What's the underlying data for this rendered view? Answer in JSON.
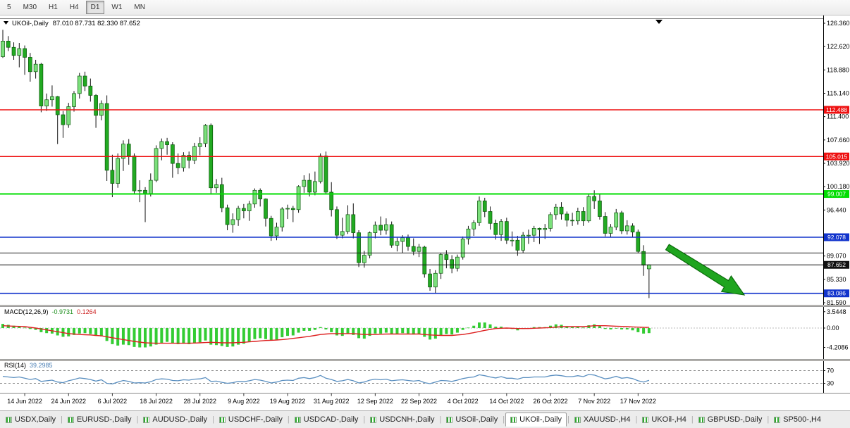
{
  "toolbar": {
    "periods": [
      {
        "label": "5",
        "active": false
      },
      {
        "label": "M30",
        "active": false
      },
      {
        "label": "H1",
        "active": false
      },
      {
        "label": "H4",
        "active": false
      },
      {
        "label": "D1",
        "active": true
      },
      {
        "label": "W1",
        "active": false
      },
      {
        "label": "MN",
        "active": false
      }
    ]
  },
  "window": {
    "symbol_title": "UKOil-,Daily",
    "ohlc_text": "87.010 87.731 82.330 87.652"
  },
  "colors": {
    "bull": "#7BE07B",
    "bear": "#22AA22",
    "wick": "#111111",
    "candle_border": "#0A560A"
  },
  "chart_data": {
    "type": "candlestick",
    "title": "UKOil-,Daily",
    "ohlc_display": {
      "open": "87.010",
      "high": "87.731",
      "low": "82.330",
      "close": "87.652"
    },
    "ylim": [
      81.59,
      126.36
    ],
    "y_axis": {
      "labels": [
        "126.360",
        "122.620",
        "118.880",
        "115.140",
        "111.400",
        "107.660",
        "103.920",
        "100.180",
        "96.440",
        "89.070",
        "85.330",
        "81.590"
      ]
    },
    "x_labels": [
      [
        "14 Jun 2022",
        4
      ],
      [
        "24 Jun 2022",
        12
      ],
      [
        "6 Jul 2022",
        20
      ],
      [
        "18 Jul 2022",
        28
      ],
      [
        "28 Jul 2022",
        36
      ],
      [
        "9 Aug 2022",
        44
      ],
      [
        "19 Aug 2022",
        52
      ],
      [
        "31 Aug 2022",
        60
      ],
      [
        "12 Sep 2022",
        68
      ],
      [
        "22 Sep 2022",
        76
      ],
      [
        "4 Oct 2022",
        84
      ],
      [
        "14 Oct 2022",
        92
      ],
      [
        "26 Oct 2022",
        100
      ],
      [
        "7 Nov 2022",
        108
      ],
      [
        "17 Nov 2022",
        116
      ]
    ],
    "candles": [
      [
        121.0,
        125.3,
        120.8,
        123.5
      ],
      [
        123.5,
        124.3,
        121.9,
        122.5
      ],
      [
        122.5,
        123.3,
        120.5,
        121.2
      ],
      [
        121.2,
        123.2,
        119.3,
        122.3
      ],
      [
        122.3,
        122.8,
        118.1,
        120.9
      ],
      [
        120.9,
        121.6,
        117.0,
        118.6
      ],
      [
        118.6,
        120.5,
        117.5,
        119.8
      ],
      [
        119.8,
        120.0,
        112.1,
        113.1
      ],
      [
        113.1,
        115.1,
        112.3,
        114.1
      ],
      [
        114.1,
        116.4,
        113.0,
        114.6
      ],
      [
        114.6,
        114.7,
        107.0,
        111.7
      ],
      [
        111.7,
        112.3,
        108.0,
        110.1
      ],
      [
        110.1,
        113.6,
        109.6,
        113.0
      ],
      [
        113.0,
        115.5,
        112.2,
        115.1
      ],
      [
        115.1,
        118.4,
        114.3,
        117.9
      ],
      [
        117.9,
        118.6,
        115.5,
        116.3
      ],
      [
        116.3,
        117.5,
        113.8,
        114.8
      ],
      [
        114.8,
        115.0,
        109.6,
        111.6
      ],
      [
        111.6,
        114.0,
        110.8,
        113.5
      ],
      [
        113.5,
        114.8,
        101.1,
        102.8
      ],
      [
        102.8,
        105.3,
        98.5,
        100.7
      ],
      [
        100.7,
        105.5,
        100.0,
        104.7
      ],
      [
        104.7,
        107.6,
        102.7,
        107.0
      ],
      [
        107.0,
        107.8,
        103.7,
        105.1
      ],
      [
        105.1,
        105.5,
        98.9,
        99.5
      ],
      [
        99.5,
        101.2,
        97.7,
        99.6
      ],
      [
        99.6,
        100.1,
        94.5,
        99.1
      ],
      [
        99.1,
        102.3,
        98.6,
        101.2
      ],
      [
        101.2,
        106.8,
        100.9,
        106.3
      ],
      [
        106.3,
        107.9,
        104.4,
        107.4
      ],
      [
        107.4,
        108.0,
        105.3,
        106.9
      ],
      [
        106.9,
        107.3,
        101.6,
        103.9
      ],
      [
        103.9,
        105.5,
        102.2,
        103.2
      ],
      [
        103.2,
        105.7,
        102.6,
        105.2
      ],
      [
        105.2,
        105.8,
        103.1,
        104.4
      ],
      [
        104.4,
        107.2,
        103.8,
        106.6
      ],
      [
        106.6,
        108.1,
        105.2,
        107.1
      ],
      [
        107.1,
        110.2,
        106.5,
        110.0
      ],
      [
        110.0,
        110.3,
        99.1,
        100.0
      ],
      [
        100.0,
        101.4,
        99.2,
        100.5
      ],
      [
        100.5,
        101.6,
        96.1,
        96.8
      ],
      [
        96.8,
        97.3,
        93.2,
        94.1
      ],
      [
        94.1,
        95.9,
        92.8,
        94.9
      ],
      [
        94.9,
        97.1,
        93.9,
        96.7
      ],
      [
        96.7,
        97.4,
        95.1,
        96.3
      ],
      [
        96.3,
        97.9,
        94.7,
        97.4
      ],
      [
        97.4,
        99.9,
        96.8,
        99.6
      ],
      [
        99.6,
        99.9,
        97.0,
        98.2
      ],
      [
        98.2,
        98.3,
        93.8,
        95.1
      ],
      [
        95.1,
        95.5,
        91.5,
        92.3
      ],
      [
        92.3,
        94.4,
        91.6,
        93.7
      ],
      [
        93.7,
        96.9,
        93.0,
        96.6
      ],
      [
        96.6,
        97.3,
        95.0,
        96.7
      ],
      [
        96.7,
        97.1,
        94.5,
        96.5
      ],
      [
        96.5,
        100.4,
        96.0,
        100.2
      ],
      [
        100.2,
        102.0,
        99.2,
        101.2
      ],
      [
        101.2,
        102.3,
        98.6,
        99.3
      ],
      [
        99.3,
        102.6,
        98.8,
        101.0
      ],
      [
        101.0,
        105.5,
        100.7,
        105.1
      ],
      [
        105.1,
        105.8,
        98.9,
        99.3
      ],
      [
        99.3,
        100.9,
        95.4,
        96.5
      ],
      [
        96.5,
        97.0,
        91.8,
        92.4
      ],
      [
        92.4,
        95.2,
        91.9,
        93.0
      ],
      [
        93.0,
        97.2,
        92.6,
        95.7
      ],
      [
        95.7,
        97.5,
        91.9,
        92.8
      ],
      [
        92.8,
        93.2,
        87.3,
        88.0
      ],
      [
        88.0,
        89.9,
        87.2,
        89.2
      ],
      [
        89.2,
        93.0,
        88.7,
        92.8
      ],
      [
        92.8,
        94.6,
        91.9,
        94.0
      ],
      [
        94.0,
        95.4,
        92.4,
        93.2
      ],
      [
        93.2,
        95.1,
        92.5,
        94.1
      ],
      [
        94.1,
        94.6,
        90.4,
        90.8
      ],
      [
        90.8,
        92.0,
        89.8,
        91.4
      ],
      [
        91.4,
        92.4,
        89.6,
        92.0
      ],
      [
        92.0,
        92.5,
        89.9,
        90.6
      ],
      [
        90.6,
        91.9,
        89.2,
        89.8
      ],
      [
        89.8,
        91.0,
        88.9,
        90.5
      ],
      [
        90.5,
        90.7,
        85.6,
        86.2
      ],
      [
        86.2,
        87.0,
        83.5,
        84.1
      ],
      [
        84.1,
        86.8,
        83.1,
        86.3
      ],
      [
        86.3,
        89.6,
        85.4,
        89.3
      ],
      [
        89.3,
        90.0,
        87.1,
        88.5
      ],
      [
        88.5,
        89.2,
        86.3,
        87.1
      ],
      [
        87.1,
        89.3,
        86.6,
        88.9
      ],
      [
        88.9,
        92.2,
        88.5,
        91.8
      ],
      [
        91.8,
        93.9,
        90.9,
        93.4
      ],
      [
        93.4,
        94.8,
        92.3,
        94.4
      ],
      [
        94.4,
        98.6,
        93.9,
        97.9
      ],
      [
        97.9,
        98.4,
        95.3,
        96.2
      ],
      [
        96.2,
        97.0,
        93.3,
        94.3
      ],
      [
        94.3,
        94.9,
        91.7,
        92.5
      ],
      [
        92.5,
        95.0,
        91.5,
        94.6
      ],
      [
        94.6,
        95.2,
        91.0,
        91.6
      ],
      [
        91.6,
        93.0,
        90.6,
        91.6
      ],
      [
        91.6,
        92.3,
        89.1,
        90.0
      ],
      [
        90.0,
        92.9,
        89.6,
        92.4
      ],
      [
        92.4,
        93.3,
        91.0,
        92.4
      ],
      [
        92.4,
        93.9,
        91.3,
        93.5
      ],
      [
        93.5,
        93.6,
        91.0,
        93.3
      ],
      [
        93.3,
        94.2,
        91.8,
        93.5
      ],
      [
        93.5,
        96.1,
        93.0,
        95.7
      ],
      [
        95.7,
        97.4,
        94.9,
        96.9
      ],
      [
        96.9,
        97.7,
        94.9,
        95.8
      ],
      [
        95.8,
        96.2,
        93.8,
        94.8
      ],
      [
        94.8,
        96.0,
        93.9,
        94.7
      ],
      [
        94.7,
        96.8,
        94.1,
        96.2
      ],
      [
        96.2,
        96.9,
        93.9,
        94.7
      ],
      [
        94.7,
        98.9,
        94.4,
        98.6
      ],
      [
        98.6,
        99.6,
        96.6,
        97.9
      ],
      [
        97.9,
        99.1,
        94.9,
        95.4
      ],
      [
        95.4,
        96.1,
        92.2,
        92.7
      ],
      [
        92.7,
        94.2,
        92.1,
        93.7
      ],
      [
        93.7,
        96.6,
        93.2,
        96.0
      ],
      [
        96.0,
        96.3,
        92.6,
        93.1
      ],
      [
        93.1,
        94.8,
        92.5,
        93.9
      ],
      [
        93.9,
        94.3,
        92.1,
        92.9
      ],
      [
        92.9,
        93.3,
        89.5,
        89.8
      ],
      [
        89.8,
        90.8,
        85.9,
        87.6
      ],
      [
        87.01,
        87.731,
        82.33,
        87.652
      ]
    ],
    "hlines": [
      {
        "price": 112.488,
        "color": "#EE1111",
        "width": 1.4,
        "badge": "112.488"
      },
      {
        "price": 105.015,
        "color": "#EE1111",
        "width": 1.4,
        "badge": "105.015"
      },
      {
        "price": 99.007,
        "color": "#00DD00",
        "width": 2,
        "badge": "99.007"
      },
      {
        "price": 92.078,
        "color": "#1133CC",
        "width": 1.6,
        "badge": "92.078"
      },
      {
        "price": 89.55,
        "color": "#222222",
        "width": 1,
        "badge": null
      },
      {
        "price": 87.652,
        "color": "#111111",
        "width": 1,
        "badge": "87.652"
      },
      {
        "price": 83.086,
        "color": "#1133CC",
        "width": 1.6,
        "badge": "83.086"
      }
    ],
    "arrow": {
      "color": "#1FA51F",
      "border": "#0B6B0B",
      "from": [
        947,
        329
      ],
      "to": [
        1056,
        397
      ]
    },
    "macd": {
      "label": "MACD(12,26,9)",
      "main_value": "-0.9731",
      "signal_value": "0.1264",
      "hist_color": "#33CC33",
      "signal_color": "#DD2020",
      "axis": [
        [
          "3.5448",
          3.5448
        ],
        [
          "0.00",
          0
        ],
        [
          "-4.2086",
          -4.2086
        ]
      ],
      "hist": [
        0.9,
        0.7,
        0.5,
        0.4,
        0.1,
        -0.2,
        -0.4,
        -0.9,
        -1.1,
        -1.2,
        -1.6,
        -1.9,
        -1.8,
        -1.5,
        -1.2,
        -1.1,
        -1.3,
        -1.7,
        -1.8,
        -2.8,
        -3.5,
        -3.8,
        -3.6,
        -3.7,
        -4.1,
        -4.2,
        -4.2,
        -4.0,
        -3.6,
        -3.2,
        -3.0,
        -3.3,
        -3.5,
        -3.4,
        -3.5,
        -3.3,
        -3.1,
        -2.7,
        -3.6,
        -3.7,
        -3.9,
        -4.1,
        -4.0,
        -3.6,
        -3.4,
        -3.0,
        -2.4,
        -2.2,
        -2.4,
        -2.7,
        -2.5,
        -2.0,
        -1.7,
        -1.6,
        -1.0,
        -0.6,
        -0.6,
        -0.4,
        0.2,
        -0.3,
        -0.9,
        -1.6,
        -1.7,
        -1.3,
        -1.5,
        -2.2,
        -2.3,
        -1.7,
        -1.2,
        -1.2,
        -1.0,
        -1.3,
        -1.3,
        -1.1,
        -1.2,
        -1.4,
        -1.3,
        -1.9,
        -2.5,
        -2.3,
        -1.6,
        -1.3,
        -1.4,
        -1.0,
        -0.4,
        0.1,
        0.5,
        1.2,
        1.2,
        0.8,
        0.3,
        0.3,
        -0.1,
        -0.2,
        -0.5,
        -0.2,
        0.0,
        0.2,
        0.2,
        0.2,
        0.5,
        0.8,
        0.7,
        0.4,
        0.2,
        0.3,
        0.1,
        0.6,
        0.8,
        0.4,
        -0.2,
        -0.3,
        0.0,
        -0.3,
        -0.3,
        -0.5,
        -0.9,
        -1.2,
        -1.1
      ],
      "signal": [
        0.5,
        0.45,
        0.4,
        0.35,
        0.3,
        0.15,
        0.0,
        -0.2,
        -0.4,
        -0.6,
        -0.8,
        -1.0,
        -1.2,
        -1.3,
        -1.4,
        -1.45,
        -1.5,
        -1.6,
        -1.7,
        -1.9,
        -2.1,
        -2.3,
        -2.5,
        -2.7,
        -2.9,
        -3.05,
        -3.2,
        -3.25,
        -3.3,
        -3.3,
        -3.3,
        -3.3,
        -3.3,
        -3.3,
        -3.3,
        -3.25,
        -3.2,
        -3.15,
        -3.1,
        -3.15,
        -3.2,
        -3.2,
        -3.2,
        -3.15,
        -3.1,
        -3.0,
        -2.9,
        -2.8,
        -2.7,
        -2.65,
        -2.6,
        -2.5,
        -2.4,
        -2.25,
        -2.1,
        -1.95,
        -1.8,
        -1.6,
        -1.4,
        -1.3,
        -1.2,
        -1.2,
        -1.2,
        -1.2,
        -1.2,
        -1.3,
        -1.4,
        -1.4,
        -1.4,
        -1.35,
        -1.3,
        -1.3,
        -1.3,
        -1.3,
        -1.3,
        -1.3,
        -1.3,
        -1.4,
        -1.5,
        -1.55,
        -1.6,
        -1.6,
        -1.6,
        -1.5,
        -1.4,
        -1.2,
        -1.0,
        -0.75,
        -0.5,
        -0.3,
        -0.1,
        -0.05,
        0.0,
        -0.05,
        -0.1,
        -0.1,
        -0.1,
        -0.05,
        0.0,
        0.05,
        0.1,
        0.2,
        0.3,
        0.3,
        0.3,
        0.3,
        0.3,
        0.4,
        0.5,
        0.5,
        0.5,
        0.45,
        0.4,
        0.35,
        0.3,
        0.25,
        0.2,
        0.16,
        0.13
      ]
    },
    "rsi": {
      "label": "RSI(14)",
      "value": "39.2985",
      "line_color": "#5A8FC0",
      "levels": [
        [
          "70",
          70
        ],
        [
          "30",
          30
        ]
      ],
      "values": [
        52,
        50,
        48,
        50,
        46,
        42,
        45,
        36,
        38,
        40,
        34,
        32,
        38,
        42,
        47,
        45,
        42,
        37,
        41,
        30,
        28,
        34,
        39,
        36,
        31,
        32,
        31,
        35,
        42,
        44,
        43,
        39,
        38,
        41,
        40,
        43,
        44,
        48,
        36,
        37,
        33,
        30,
        32,
        36,
        35,
        38,
        42,
        40,
        36,
        31,
        34,
        39,
        40,
        39,
        46,
        48,
        45,
        48,
        55,
        46,
        42,
        36,
        38,
        42,
        38,
        31,
        34,
        40,
        43,
        41,
        43,
        38,
        40,
        41,
        39,
        37,
        39,
        32,
        29,
        34,
        39,
        38,
        36,
        40,
        45,
        48,
        50,
        57,
        54,
        50,
        47,
        51,
        46,
        46,
        43,
        48,
        48,
        50,
        50,
        50,
        54,
        56,
        54,
        51,
        51,
        54,
        51,
        58,
        56,
        50,
        44,
        47,
        52,
        46,
        48,
        45,
        38,
        34,
        39.3
      ]
    }
  },
  "tabs": {
    "separator": "|",
    "items": [
      {
        "label": "USDX,Daily",
        "active": false
      },
      {
        "label": "EURUSD-,Daily",
        "active": false
      },
      {
        "label": "AUDUSD-,Daily",
        "active": false
      },
      {
        "label": "USDCHF-,Daily",
        "active": false
      },
      {
        "label": "USDCAD-,Daily",
        "active": false
      },
      {
        "label": "USDCNH-,Daily",
        "active": false
      },
      {
        "label": "USOil-,Daily",
        "active": false
      },
      {
        "label": "UKOil-,Daily",
        "active": true
      },
      {
        "label": "XAUUSD-,H4",
        "active": false
      },
      {
        "label": "UKOil-,H4",
        "active": false
      },
      {
        "label": "GBPUSD-,Daily",
        "active": false
      },
      {
        "label": "SP500-,H4",
        "active": false
      }
    ]
  }
}
